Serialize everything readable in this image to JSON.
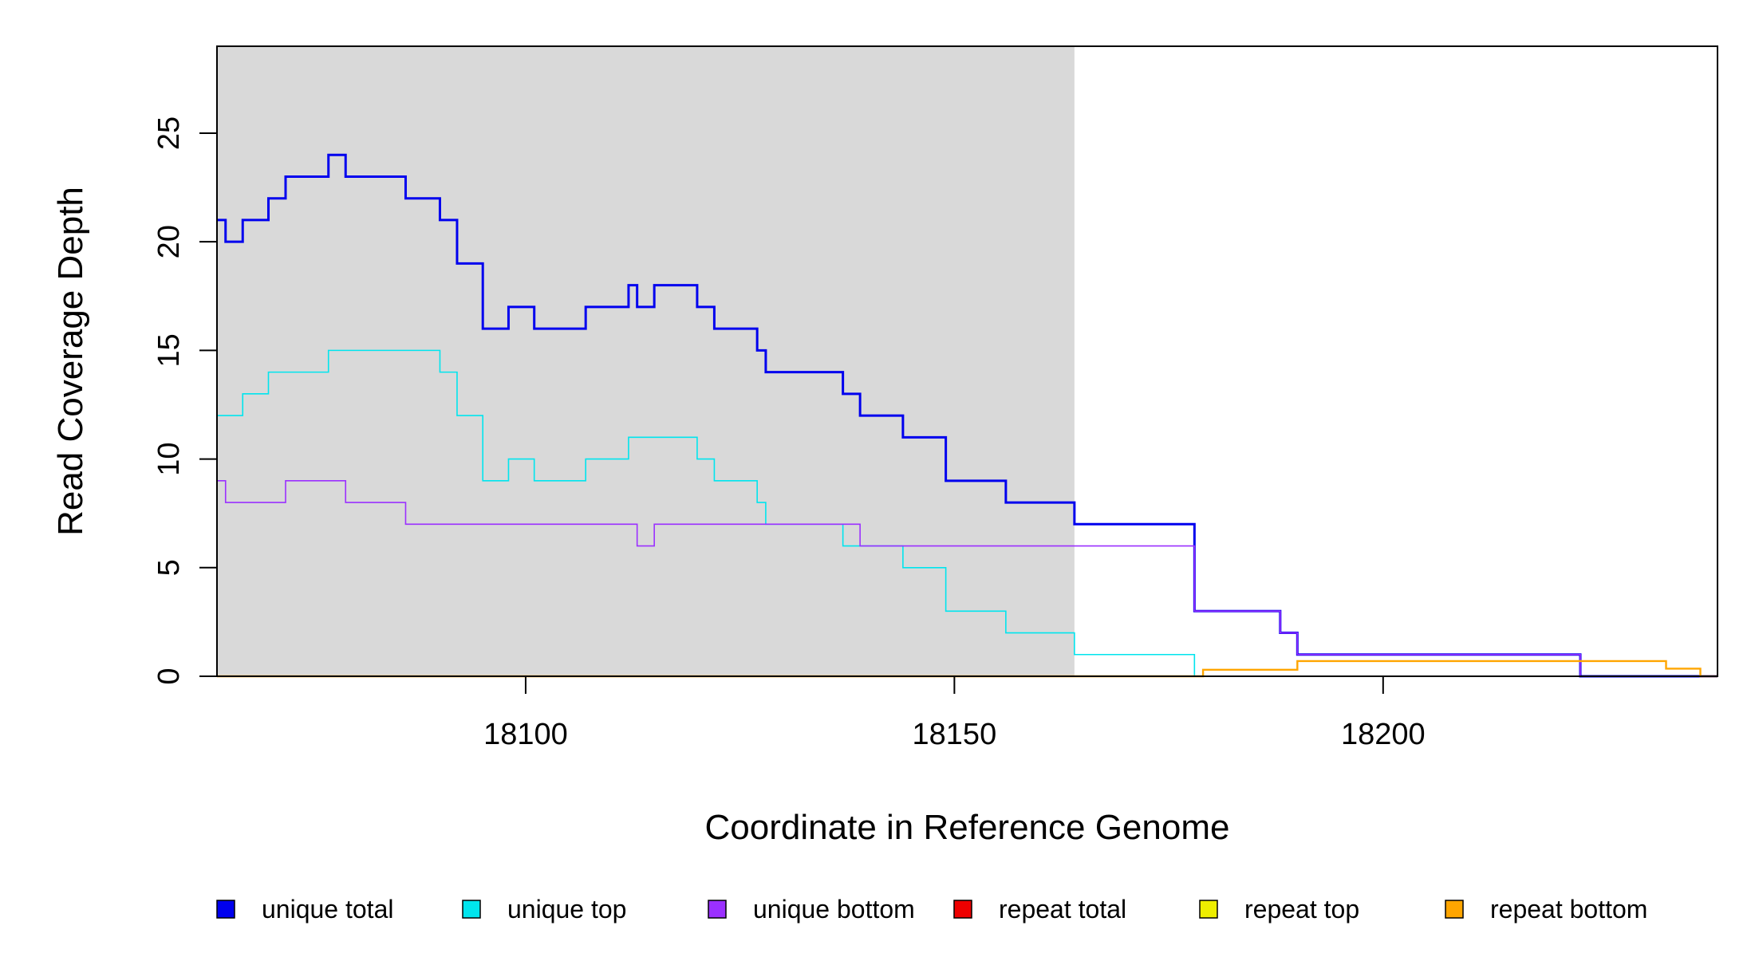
{
  "chart_data": {
    "type": "line",
    "title": "",
    "xlabel": "Coordinate in Reference Genome",
    "ylabel": "Read Coverage Depth",
    "xlim": [
      18064,
      18239
    ],
    "ylim": [
      0,
      29
    ],
    "x_ticks": [
      "18100",
      "18150",
      "18200"
    ],
    "y_ticks": [
      "0",
      "5",
      "10",
      "15",
      "20",
      "25"
    ],
    "grid": false,
    "legend_position": "bottom",
    "highlight_region": {
      "x": [
        18064,
        18164
      ],
      "color": "#d9d9d9"
    },
    "series": [
      {
        "name": "unique total",
        "color": "#0000ee",
        "line_width": 3,
        "points": [
          [
            18064,
            21
          ],
          [
            18065,
            20
          ],
          [
            18067,
            21
          ],
          [
            18070,
            22
          ],
          [
            18072,
            23
          ],
          [
            18077,
            24
          ],
          [
            18079,
            23
          ],
          [
            18086,
            22
          ],
          [
            18090,
            21
          ],
          [
            18092,
            19
          ],
          [
            18095,
            16
          ],
          [
            18098,
            17
          ],
          [
            18101,
            16
          ],
          [
            18107,
            17
          ],
          [
            18112,
            18
          ],
          [
            18113,
            17
          ],
          [
            18115,
            18
          ],
          [
            18120,
            17
          ],
          [
            18122,
            16
          ],
          [
            18127,
            15
          ],
          [
            18128,
            14
          ],
          [
            18137,
            13
          ],
          [
            18139,
            12
          ],
          [
            18144,
            11
          ],
          [
            18149,
            9
          ],
          [
            18156,
            8
          ],
          [
            18164,
            7
          ],
          [
            18178,
            3
          ],
          [
            18188,
            2
          ],
          [
            18190,
            1
          ],
          [
            18223,
            0
          ],
          [
            18239,
            0
          ]
        ]
      },
      {
        "name": "unique top",
        "color": "#00e5ee",
        "line_width": 1.6,
        "points": [
          [
            18064,
            12
          ],
          [
            18067,
            13
          ],
          [
            18070,
            14
          ],
          [
            18077,
            15
          ],
          [
            18090,
            14
          ],
          [
            18092,
            12
          ],
          [
            18095,
            9
          ],
          [
            18098,
            10
          ],
          [
            18101,
            9
          ],
          [
            18107,
            10
          ],
          [
            18112,
            11
          ],
          [
            18120,
            10
          ],
          [
            18122,
            9
          ],
          [
            18127,
            8
          ],
          [
            18128,
            7
          ],
          [
            18137,
            6
          ],
          [
            18144,
            5
          ],
          [
            18149,
            3
          ],
          [
            18156,
            2
          ],
          [
            18164,
            1
          ],
          [
            18178,
            0
          ],
          [
            18239,
            0
          ]
        ]
      },
      {
        "name": "unique bottom",
        "color": "#9b30ff",
        "line_width": 1.6,
        "points": [
          [
            18064,
            9
          ],
          [
            18065,
            8
          ],
          [
            18072,
            9
          ],
          [
            18079,
            8
          ],
          [
            18086,
            7
          ],
          [
            18113,
            6
          ],
          [
            18115,
            7
          ],
          [
            18139,
            6
          ],
          [
            18178,
            3
          ],
          [
            18188,
            2
          ],
          [
            18190,
            1
          ],
          [
            18223,
            0
          ],
          [
            18239,
            0
          ]
        ]
      },
      {
        "name": "repeat total",
        "color": "#ee0000",
        "line_width": 1.6,
        "points": [
          [
            18064,
            0
          ],
          [
            18179,
            0.3
          ],
          [
            18190,
            0.7
          ],
          [
            18233,
            0.35
          ],
          [
            18237,
            0
          ],
          [
            18239,
            0
          ]
        ]
      },
      {
        "name": "repeat top",
        "color": "#eeee00",
        "line_width": 1.6,
        "points": [
          [
            18064,
            0
          ],
          [
            18239,
            0
          ]
        ]
      },
      {
        "name": "repeat bottom",
        "color": "#ffa500",
        "line_width": 2.4,
        "points": [
          [
            18064,
            0
          ],
          [
            18179,
            0.3
          ],
          [
            18190,
            0.7
          ],
          [
            18233,
            0.35
          ],
          [
            18237,
            0
          ],
          [
            18239,
            0
          ]
        ]
      }
    ]
  }
}
